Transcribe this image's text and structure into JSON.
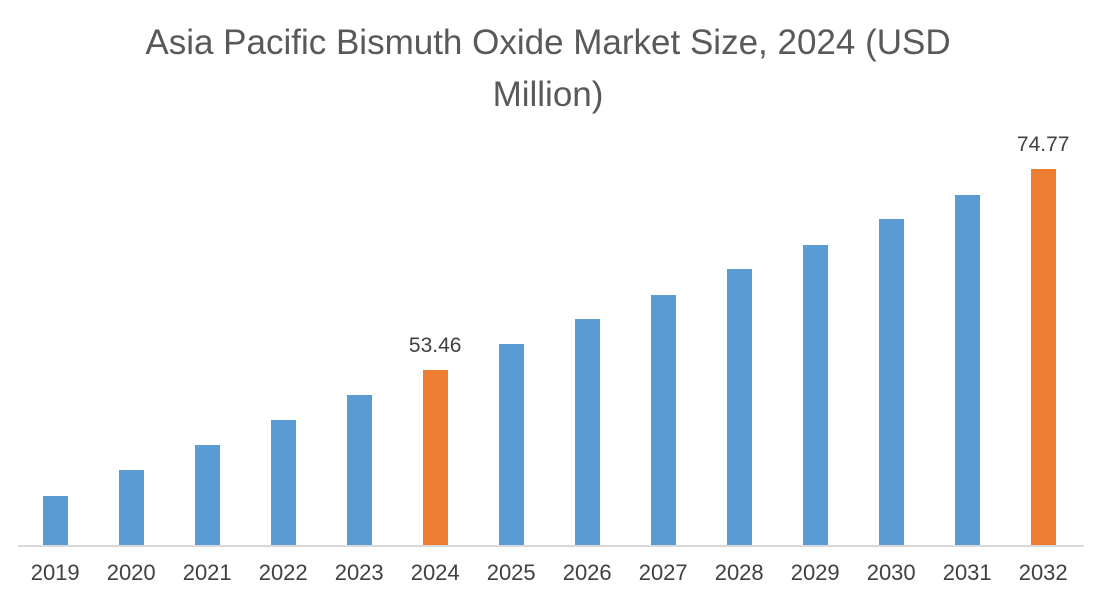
{
  "chart_data": {
    "type": "bar",
    "title": "Asia Pacific Bismuth Oxide Market Size, 2024 (USD Million)",
    "title_lines": [
      "Asia Pacific Bismuth Oxide Market Size, 2024 (USD",
      "Million)"
    ],
    "categories": [
      "2019",
      "2020",
      "2021",
      "2022",
      "2023",
      "2024",
      "2025",
      "2026",
      "2027",
      "2028",
      "2029",
      "2030",
      "2031",
      "2032"
    ],
    "values": [
      40.06,
      42.79,
      45.48,
      48.11,
      50.77,
      53.46,
      56.19,
      58.85,
      61.4,
      64.2,
      66.72,
      69.48,
      72.03,
      74.77
    ],
    "data_labels": {
      "2024": "53.46",
      "2032": "74.77"
    },
    "highlighted_categories": [
      "2024",
      "2032"
    ],
    "xlabel": "",
    "ylabel": "",
    "ylim": [
      34.8,
      80
    ],
    "grid": false,
    "legend": false,
    "colors": {
      "bar": "#5B9BD5",
      "highlight": "#ED7D31",
      "title": "#595959",
      "axis_label": "#404040",
      "axis_line": "#D9D9D9"
    }
  }
}
